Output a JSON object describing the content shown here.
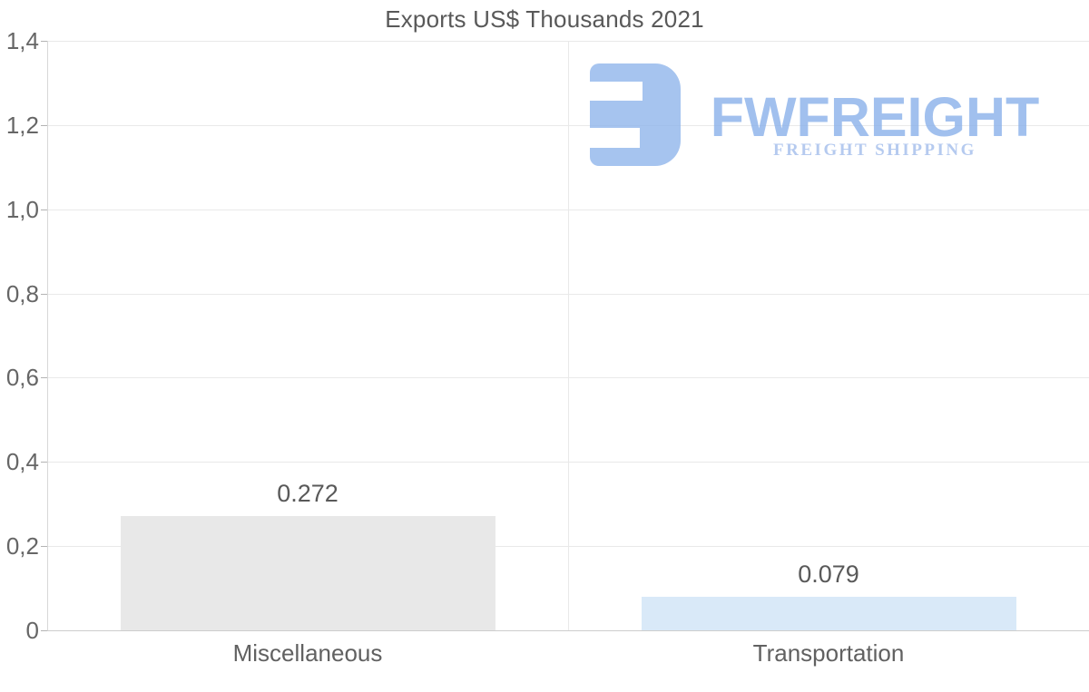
{
  "title": "Exports US$ Thousands 2021",
  "logo": {
    "name": "FWFREIGHT",
    "tagline": "FREIGHT SHIPPING",
    "icon": "fwfreight-mark",
    "color": "#a6c4ef"
  },
  "chart_data": {
    "type": "bar",
    "title": "Exports US$ Thousands 2021",
    "categories": [
      "Miscellaneous",
      "Transportation"
    ],
    "values": [
      0.272,
      0.079
    ],
    "value_labels": [
      "0.272",
      "0.079"
    ],
    "bar_colors": [
      "#e8e8e8",
      "#d9e9f8"
    ],
    "xlabel": "",
    "ylabel": "",
    "ylim": [
      0,
      1.4
    ],
    "ytick_step": 0.2,
    "ytick_labels": [
      "0",
      "0,2",
      "0,4",
      "0,6",
      "0,8",
      "1,0",
      "1,2",
      "1,4"
    ],
    "grid": true,
    "legend": false,
    "text_color": "#595959",
    "gridline_color": "#e9e9e9"
  }
}
